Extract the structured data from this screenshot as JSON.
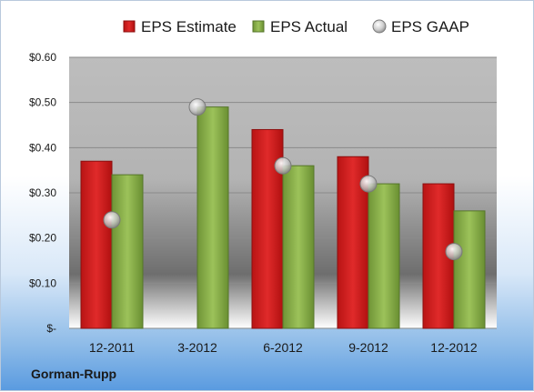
{
  "chart_data": {
    "type": "bar",
    "categories": [
      "12-2011",
      "3-2012",
      "6-2012",
      "9-2012",
      "12-2012"
    ],
    "series": [
      {
        "name": "EPS Estimate",
        "type": "bar",
        "values": [
          0.37,
          null,
          0.44,
          0.38,
          0.32
        ],
        "color": "#cc1f1f"
      },
      {
        "name": "EPS Actual",
        "type": "bar",
        "values": [
          0.34,
          0.49,
          0.36,
          0.32,
          0.26
        ],
        "color": "#8ab04a"
      },
      {
        "name": "EPS GAAP",
        "type": "scatter",
        "values": [
          0.24,
          0.49,
          0.36,
          0.32,
          0.17
        ],
        "color": "#c8c8c8"
      }
    ],
    "y_ticks": [
      "$-",
      "$0.10",
      "$0.20",
      "$0.30",
      "$0.40",
      "$0.50",
      "$0.60"
    ],
    "ylim": [
      0,
      0.6
    ],
    "grid": true,
    "legend_position": "top",
    "company": "Gorman-Rupp"
  }
}
